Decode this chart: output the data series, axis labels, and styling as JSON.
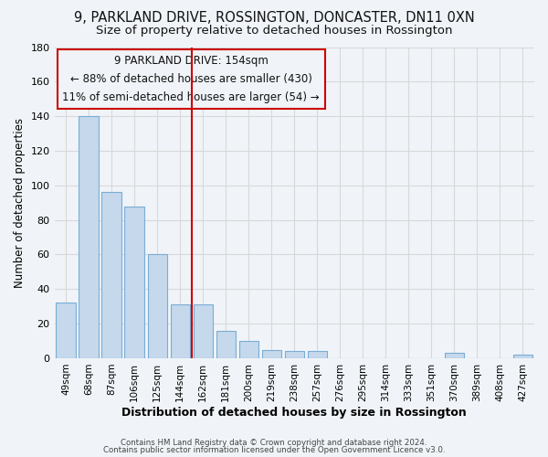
{
  "title": "9, PARKLAND DRIVE, ROSSINGTON, DONCASTER, DN11 0XN",
  "subtitle": "Size of property relative to detached houses in Rossington",
  "xlabel": "Distribution of detached houses by size in Rossington",
  "ylabel": "Number of detached properties",
  "bar_labels": [
    "49sqm",
    "68sqm",
    "87sqm",
    "106sqm",
    "125sqm",
    "144sqm",
    "162sqm",
    "181sqm",
    "200sqm",
    "219sqm",
    "238sqm",
    "257sqm",
    "276sqm",
    "295sqm",
    "314sqm",
    "333sqm",
    "351sqm",
    "370sqm",
    "389sqm",
    "408sqm",
    "427sqm"
  ],
  "bar_values": [
    32,
    140,
    96,
    88,
    60,
    31,
    31,
    16,
    10,
    5,
    4,
    4,
    0,
    0,
    0,
    0,
    0,
    3,
    0,
    0,
    2
  ],
  "bar_color": "#c5d8ec",
  "bar_edge_color": "#7aadd4",
  "vline_color": "#cc0000",
  "ylim": [
    0,
    180
  ],
  "annotation_line1": "9 PARKLAND DRIVE: 154sqm",
  "annotation_line2": "← 88% of detached houses are smaller (430)",
  "annotation_line3": "11% of semi-detached houses are larger (54) →",
  "footer1": "Contains HM Land Registry data © Crown copyright and database right 2024.",
  "footer2": "Contains public sector information licensed under the Open Government Licence v3.0.",
  "background_color": "#f0f4f8",
  "grid_color": "#d8d8d8",
  "title_fontsize": 10.5,
  "subtitle_fontsize": 9.5,
  "annotation_fontsize": 8.5
}
